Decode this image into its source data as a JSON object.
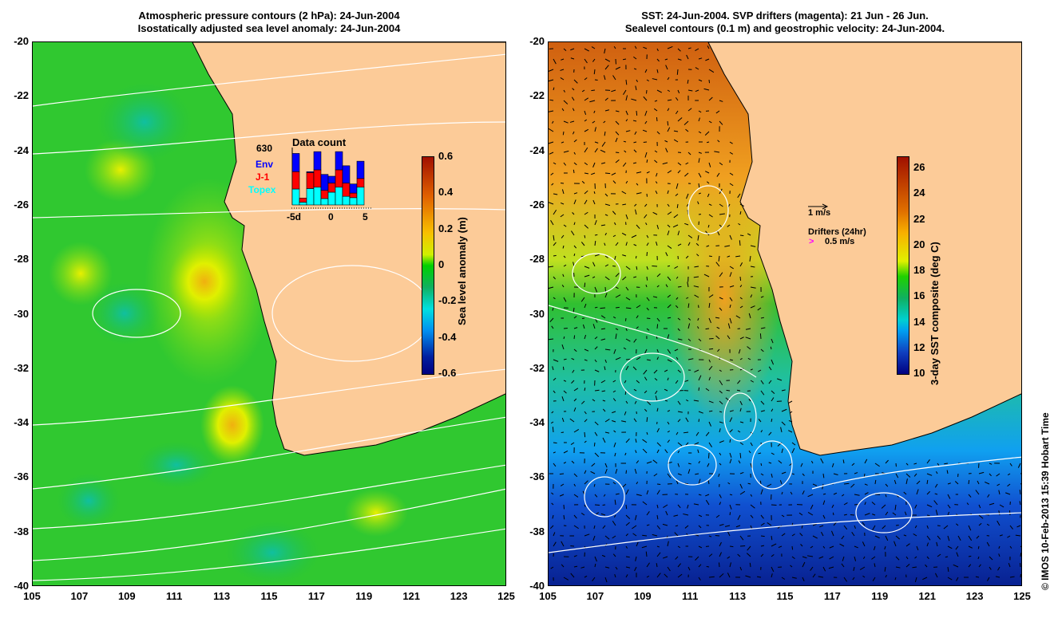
{
  "left_panel": {
    "title_line1": "Atmospheric pressure contours (2 hPa): 24-Jun-2004",
    "title_line2": "Isostatically adjusted sea level anomaly: 24-Jun-2004",
    "colorbar": {
      "label": "Sea level anomaly (m)",
      "ticks": [
        "0.6",
        "0.4",
        "0.2",
        "0",
        "-0.2",
        "-0.4",
        "-0.6"
      ]
    },
    "inset": {
      "title": "Data count",
      "max_label": "630",
      "legend": [
        "Env",
        "J-1",
        "Topex"
      ],
      "xticks": [
        "-5d",
        "0",
        "5"
      ]
    }
  },
  "right_panel": {
    "title_line1": "SST: 24-Jun-2004. SVP drifters (magenta): 21 Jun - 26 Jun.",
    "title_line2": "Sealevel contours (0.1 m) and geostrophic velocity: 24-Jun-2004.",
    "colorbar": {
      "label": "3-day SST composite (deg C)",
      "ticks": [
        "26",
        "24",
        "22",
        "20",
        "18",
        "16",
        "14",
        "12",
        "10"
      ]
    },
    "velocity_scale": "1 m/s",
    "drifters_label": "Drifters (24hr)",
    "drifters_scale": "0.5 m/s"
  },
  "axes": {
    "y_ticks": [
      "-20",
      "-22",
      "-24",
      "-26",
      "-28",
      "-30",
      "-32",
      "-34",
      "-36",
      "-38",
      "-40"
    ],
    "x_ticks": [
      "105",
      "107",
      "109",
      "111",
      "113",
      "115",
      "117",
      "119",
      "121",
      "123",
      "125"
    ]
  },
  "credit": "© IMOS 10-Feb-2013 15:39 Hobart Time",
  "colors": {
    "land": "#fccb98",
    "env": "#0000ff",
    "j1": "#ff0000",
    "topex": "#00ffff",
    "drifter": "#ff00ff"
  },
  "chart_data": {
    "type": "bar",
    "title": "Data count",
    "categories": [
      "-5",
      "-4",
      "-3",
      "-2",
      "-1",
      "0",
      "1",
      "2",
      "3",
      "4"
    ],
    "series": [
      {
        "name": "Topex",
        "values": [
          175,
          30,
          180,
          195,
          70,
          140,
          195,
          95,
          80,
          195
        ]
      },
      {
        "name": "J-1",
        "values": [
          190,
          45,
          175,
          190,
          90,
          100,
          190,
          145,
          50,
          95
        ]
      },
      {
        "name": "Env",
        "values": [
          200,
          0,
          10,
          200,
          175,
          75,
          200,
          190,
          100,
          190
        ]
      }
    ],
    "ylim": [
      0,
      630
    ]
  }
}
